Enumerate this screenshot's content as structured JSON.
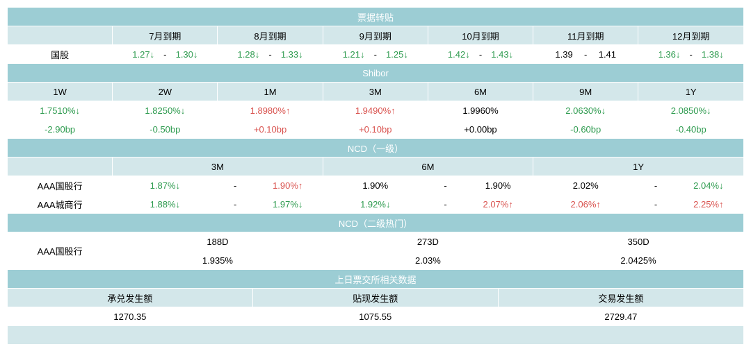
{
  "colors": {
    "header_bg": "#9ccdd4",
    "sub_bg": "#d3e7ea",
    "up": "#d9534f",
    "down": "#2e9b4f",
    "border": "#ffffff",
    "text": "#000000"
  },
  "fontsize": 13,
  "piaoju": {
    "title": "票据转贴",
    "row_label": "国股",
    "months": [
      "7月到期",
      "8月到期",
      "9月到期",
      "10月到期",
      "11月到期",
      "12月到期"
    ],
    "rows": [
      [
        {
          "v": "1.27",
          "d": "dn"
        },
        {
          "v": "1.30",
          "d": "dn"
        }
      ],
      [
        {
          "v": "1.28",
          "d": "dn"
        },
        {
          "v": "1.33",
          "d": "dn"
        }
      ],
      [
        {
          "v": "1.21",
          "d": "dn"
        },
        {
          "v": "1.25",
          "d": "dn"
        }
      ],
      [
        {
          "v": "1.42",
          "d": "dn"
        },
        {
          "v": "1.43",
          "d": "dn"
        }
      ],
      [
        {
          "v": "1.39",
          "d": ""
        },
        {
          "v": "1.41",
          "d": ""
        }
      ],
      [
        {
          "v": "1.36",
          "d": "dn"
        },
        {
          "v": "1.38",
          "d": "dn"
        }
      ]
    ]
  },
  "shibor": {
    "title": "Shibor",
    "terms": [
      "1W",
      "2W",
      "1M",
      "3M",
      "6M",
      "9M",
      "1Y"
    ],
    "rates": [
      {
        "v": "1.7510%",
        "d": "dn"
      },
      {
        "v": "1.8250%",
        "d": "dn"
      },
      {
        "v": "1.8980%",
        "d": "up"
      },
      {
        "v": "1.9490%",
        "d": "up"
      },
      {
        "v": "1.9960%",
        "d": ""
      },
      {
        "v": "2.0630%",
        "d": "dn"
      },
      {
        "v": "2.0850%",
        "d": "dn"
      }
    ],
    "bps": [
      {
        "v": "-2.90bp",
        "d": "dn"
      },
      {
        "v": "-0.50bp",
        "d": "dn"
      },
      {
        "v": "+0.10bp",
        "d": "up"
      },
      {
        "v": "+0.10bp",
        "d": "up"
      },
      {
        "v": "+0.00bp",
        "d": ""
      },
      {
        "v": "-0.60bp",
        "d": "dn"
      },
      {
        "v": "-0.40bp",
        "d": "dn"
      }
    ]
  },
  "ncd1": {
    "title": "NCD（一级）",
    "terms": [
      "3M",
      "6M",
      "1Y"
    ],
    "rows": [
      {
        "label": "AAA国股行",
        "cells": [
          [
            {
              "v": "1.87%",
              "d": "dn"
            },
            {
              "v": "1.90%",
              "d": "up"
            }
          ],
          [
            {
              "v": "1.90%",
              "d": ""
            },
            {
              "v": "1.90%",
              "d": ""
            }
          ],
          [
            {
              "v": "2.02%",
              "d": ""
            },
            {
              "v": "2.04%",
              "d": "dn"
            }
          ]
        ]
      },
      {
        "label": "AAA城商行",
        "cells": [
          [
            {
              "v": "1.88%",
              "d": "dn"
            },
            {
              "v": "1.97%",
              "d": "dn"
            }
          ],
          [
            {
              "v": "1.92%",
              "d": "dn"
            },
            {
              "v": "2.07%",
              "d": "up"
            }
          ],
          [
            {
              "v": "2.06%",
              "d": "up"
            },
            {
              "v": "2.25%",
              "d": "up"
            }
          ]
        ]
      }
    ]
  },
  "ncd2": {
    "title": "NCD（二级热门）",
    "row_label": "AAA国股行",
    "terms": [
      "188D",
      "273D",
      "350D"
    ],
    "values": [
      "1.935%",
      "2.03%",
      "2.0425%"
    ]
  },
  "exchange": {
    "title": "上日票交所相关数据",
    "cols": [
      "承兑发生额",
      "贴现发生额",
      "交易发生额"
    ],
    "vals": [
      "1270.35",
      "1075.55",
      "2729.47"
    ]
  }
}
